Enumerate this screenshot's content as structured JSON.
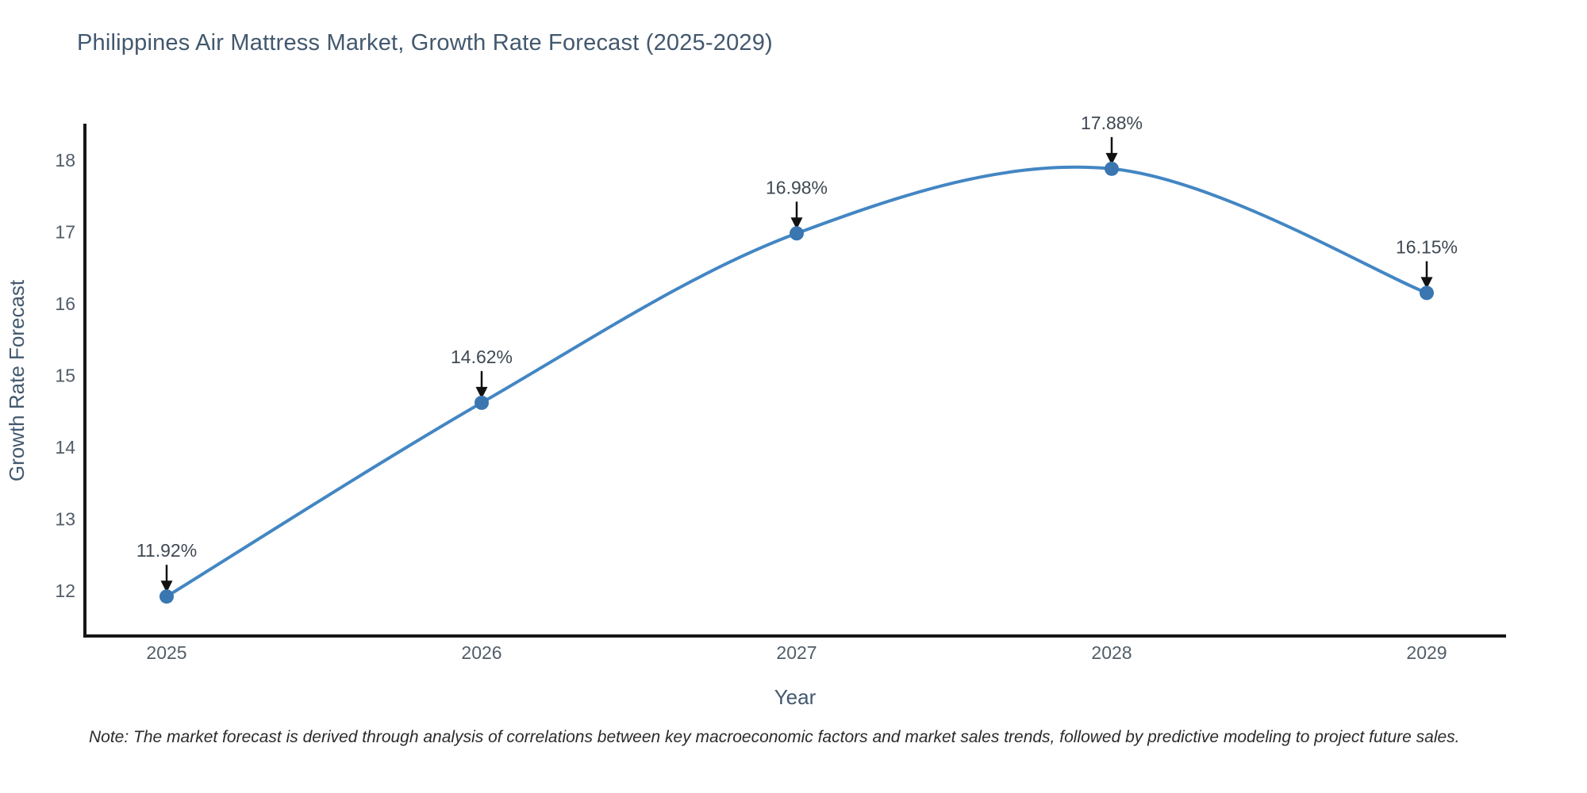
{
  "chart_data": {
    "type": "line",
    "title": "Philippines Air Mattress Market, Growth Rate Forecast (2025-2029)",
    "xlabel": "Year",
    "ylabel": "Growth Rate Forecast",
    "categories": [
      "2025",
      "2026",
      "2027",
      "2028",
      "2029"
    ],
    "series": [
      {
        "name": "Growth Rate Forecast",
        "values": [
          11.92,
          14.62,
          16.98,
          17.88,
          16.15
        ]
      }
    ],
    "point_labels": [
      "11.92%",
      "14.62%",
      "16.98%",
      "17.88%",
      "16.15%"
    ],
    "yticks": [
      12,
      13,
      14,
      15,
      16,
      17,
      18
    ],
    "ylim": [
      11.37,
      18.45
    ],
    "grid": false,
    "legend": "none",
    "line_color": "#4386c3",
    "marker_color": "#3a76b0",
    "axis_color": "#161616",
    "annotation_color": "#111111"
  },
  "footnote": "Note: The market forecast is derived through analysis of correlations between key macroeconomic factors and market sales trends, followed by predictive modeling to project future sales."
}
